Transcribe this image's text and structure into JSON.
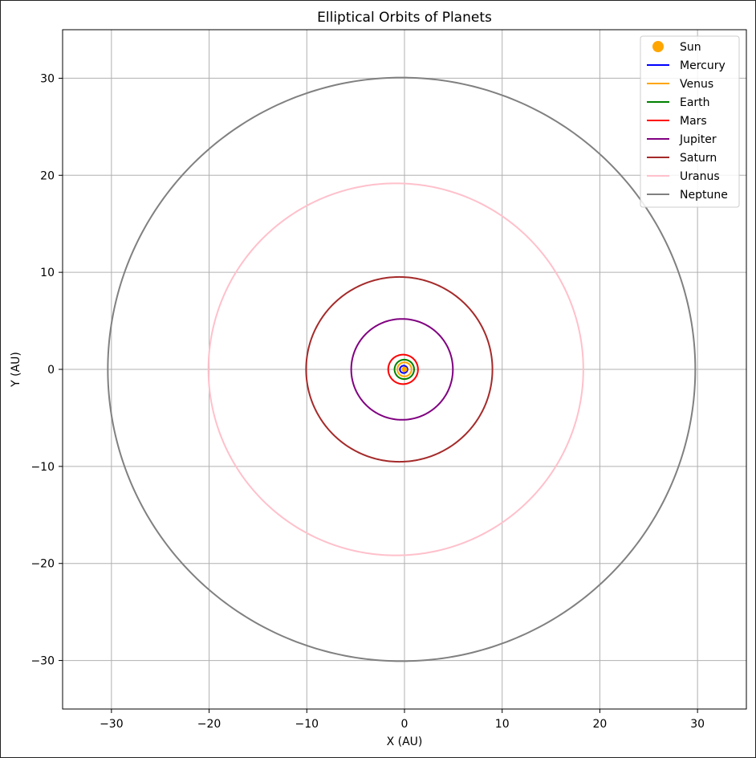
{
  "chart_data": {
    "type": "line",
    "title": "Elliptical Orbits of Planets",
    "xlabel": "X (AU)",
    "ylabel": "Y (AU)",
    "xlim": [
      -35,
      35
    ],
    "ylim": [
      -35,
      35
    ],
    "xticks": [
      -30,
      -20,
      -10,
      0,
      10,
      20,
      30
    ],
    "yticks": [
      -30,
      -20,
      -10,
      0,
      10,
      20,
      30
    ],
    "grid": true,
    "legend_position": "top-right",
    "sun": {
      "name": "Sun",
      "x": 0,
      "y": 0,
      "color": "#ffa500"
    },
    "series": [
      {
        "name": "Mercury",
        "color": "#0000ff",
        "semi_major_axis": 0.387,
        "eccentricity": 0.206
      },
      {
        "name": "Venus",
        "color": "#ffa500",
        "semi_major_axis": 0.723,
        "eccentricity": 0.007
      },
      {
        "name": "Earth",
        "color": "#008000",
        "semi_major_axis": 1.0,
        "eccentricity": 0.017
      },
      {
        "name": "Mars",
        "color": "#ff0000",
        "semi_major_axis": 1.524,
        "eccentricity": 0.093
      },
      {
        "name": "Jupiter",
        "color": "#800080",
        "semi_major_axis": 5.203,
        "eccentricity": 0.048
      },
      {
        "name": "Saturn",
        "color": "#a52a2a",
        "semi_major_axis": 9.537,
        "eccentricity": 0.056
      },
      {
        "name": "Uranus",
        "color": "#ffc0cb",
        "semi_major_axis": 19.19,
        "eccentricity": 0.046
      },
      {
        "name": "Neptune",
        "color": "#808080",
        "semi_major_axis": 30.07,
        "eccentricity": 0.01
      }
    ]
  }
}
